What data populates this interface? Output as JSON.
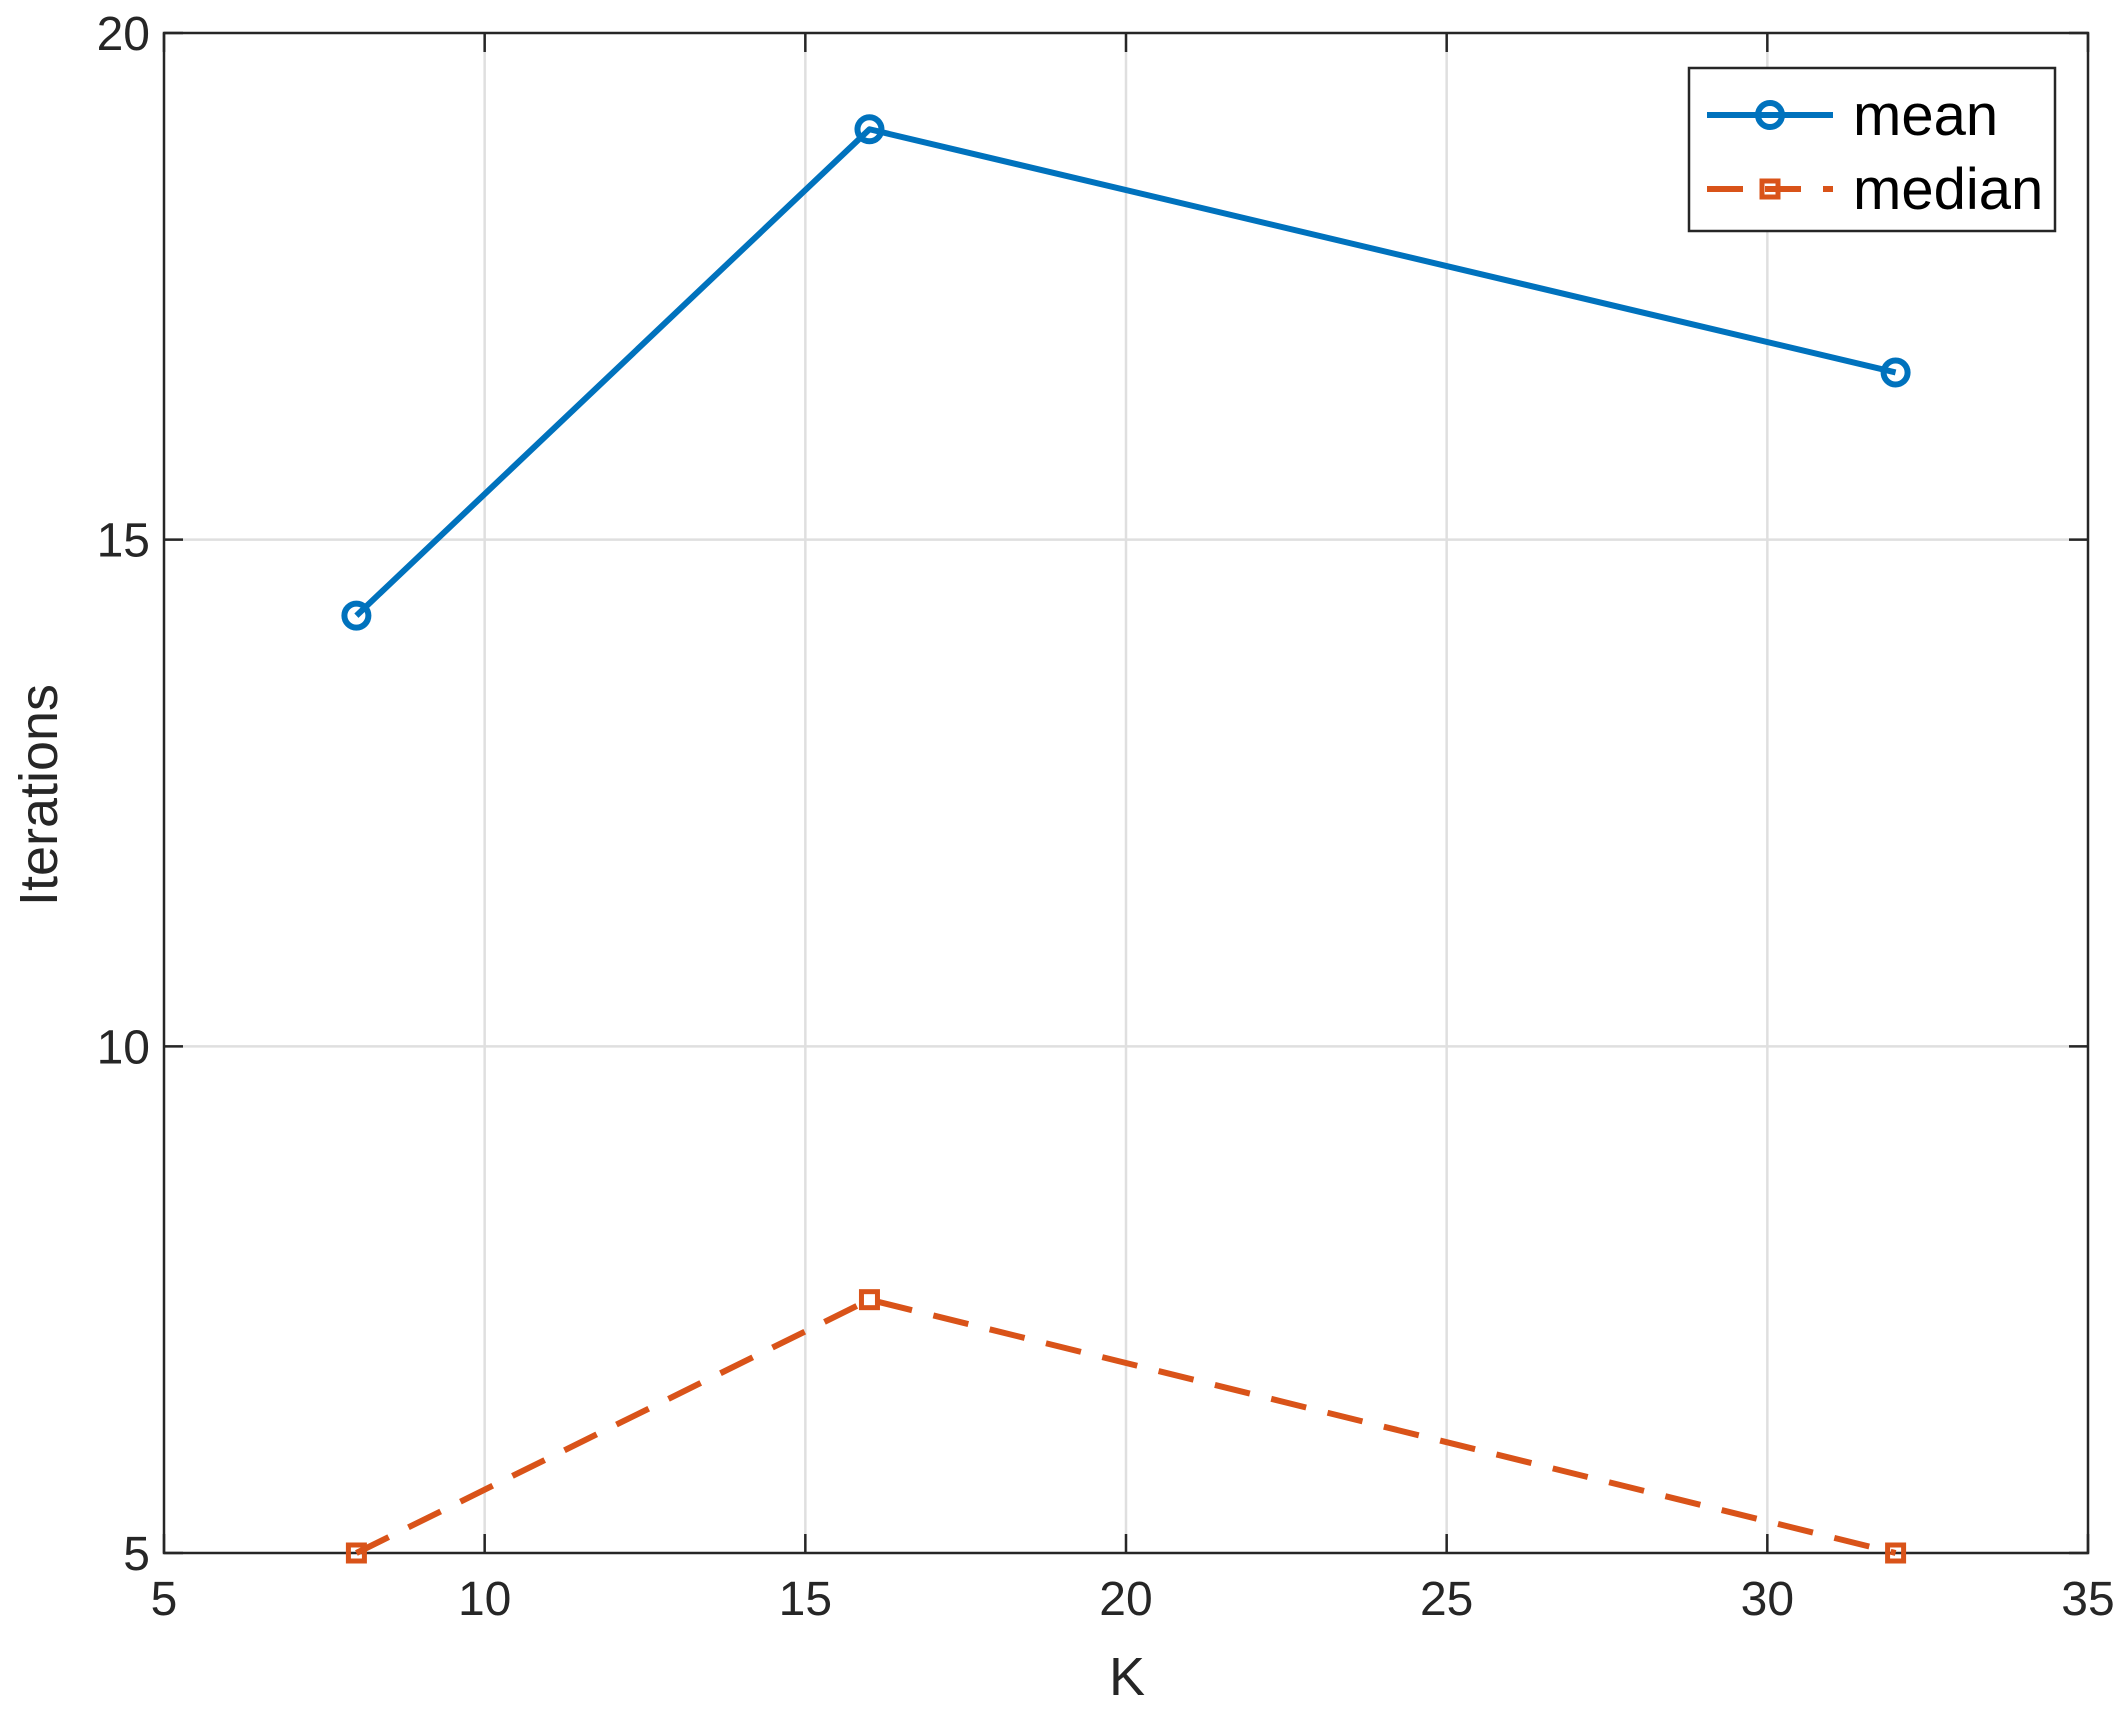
{
  "chart_data": {
    "type": "line",
    "title": "",
    "xlabel": "K",
    "ylabel": "Iterations",
    "xlim": [
      5,
      35
    ],
    "ylim": [
      5,
      20
    ],
    "xticks": [
      5,
      10,
      15,
      20,
      25,
      30,
      35
    ],
    "yticks": [
      5,
      10,
      15,
      20
    ],
    "grid": true,
    "legend_position": "top-right",
    "x": [
      8,
      16,
      32
    ],
    "series": [
      {
        "name": "mean",
        "values": [
          14.25,
          19.05,
          16.65
        ],
        "color": "#0072BD",
        "line_style": "solid",
        "marker": "circle"
      },
      {
        "name": "median",
        "values": [
          5,
          7.5,
          5
        ],
        "color": "#D95319",
        "line_style": "dashed",
        "marker": "square"
      }
    ]
  }
}
